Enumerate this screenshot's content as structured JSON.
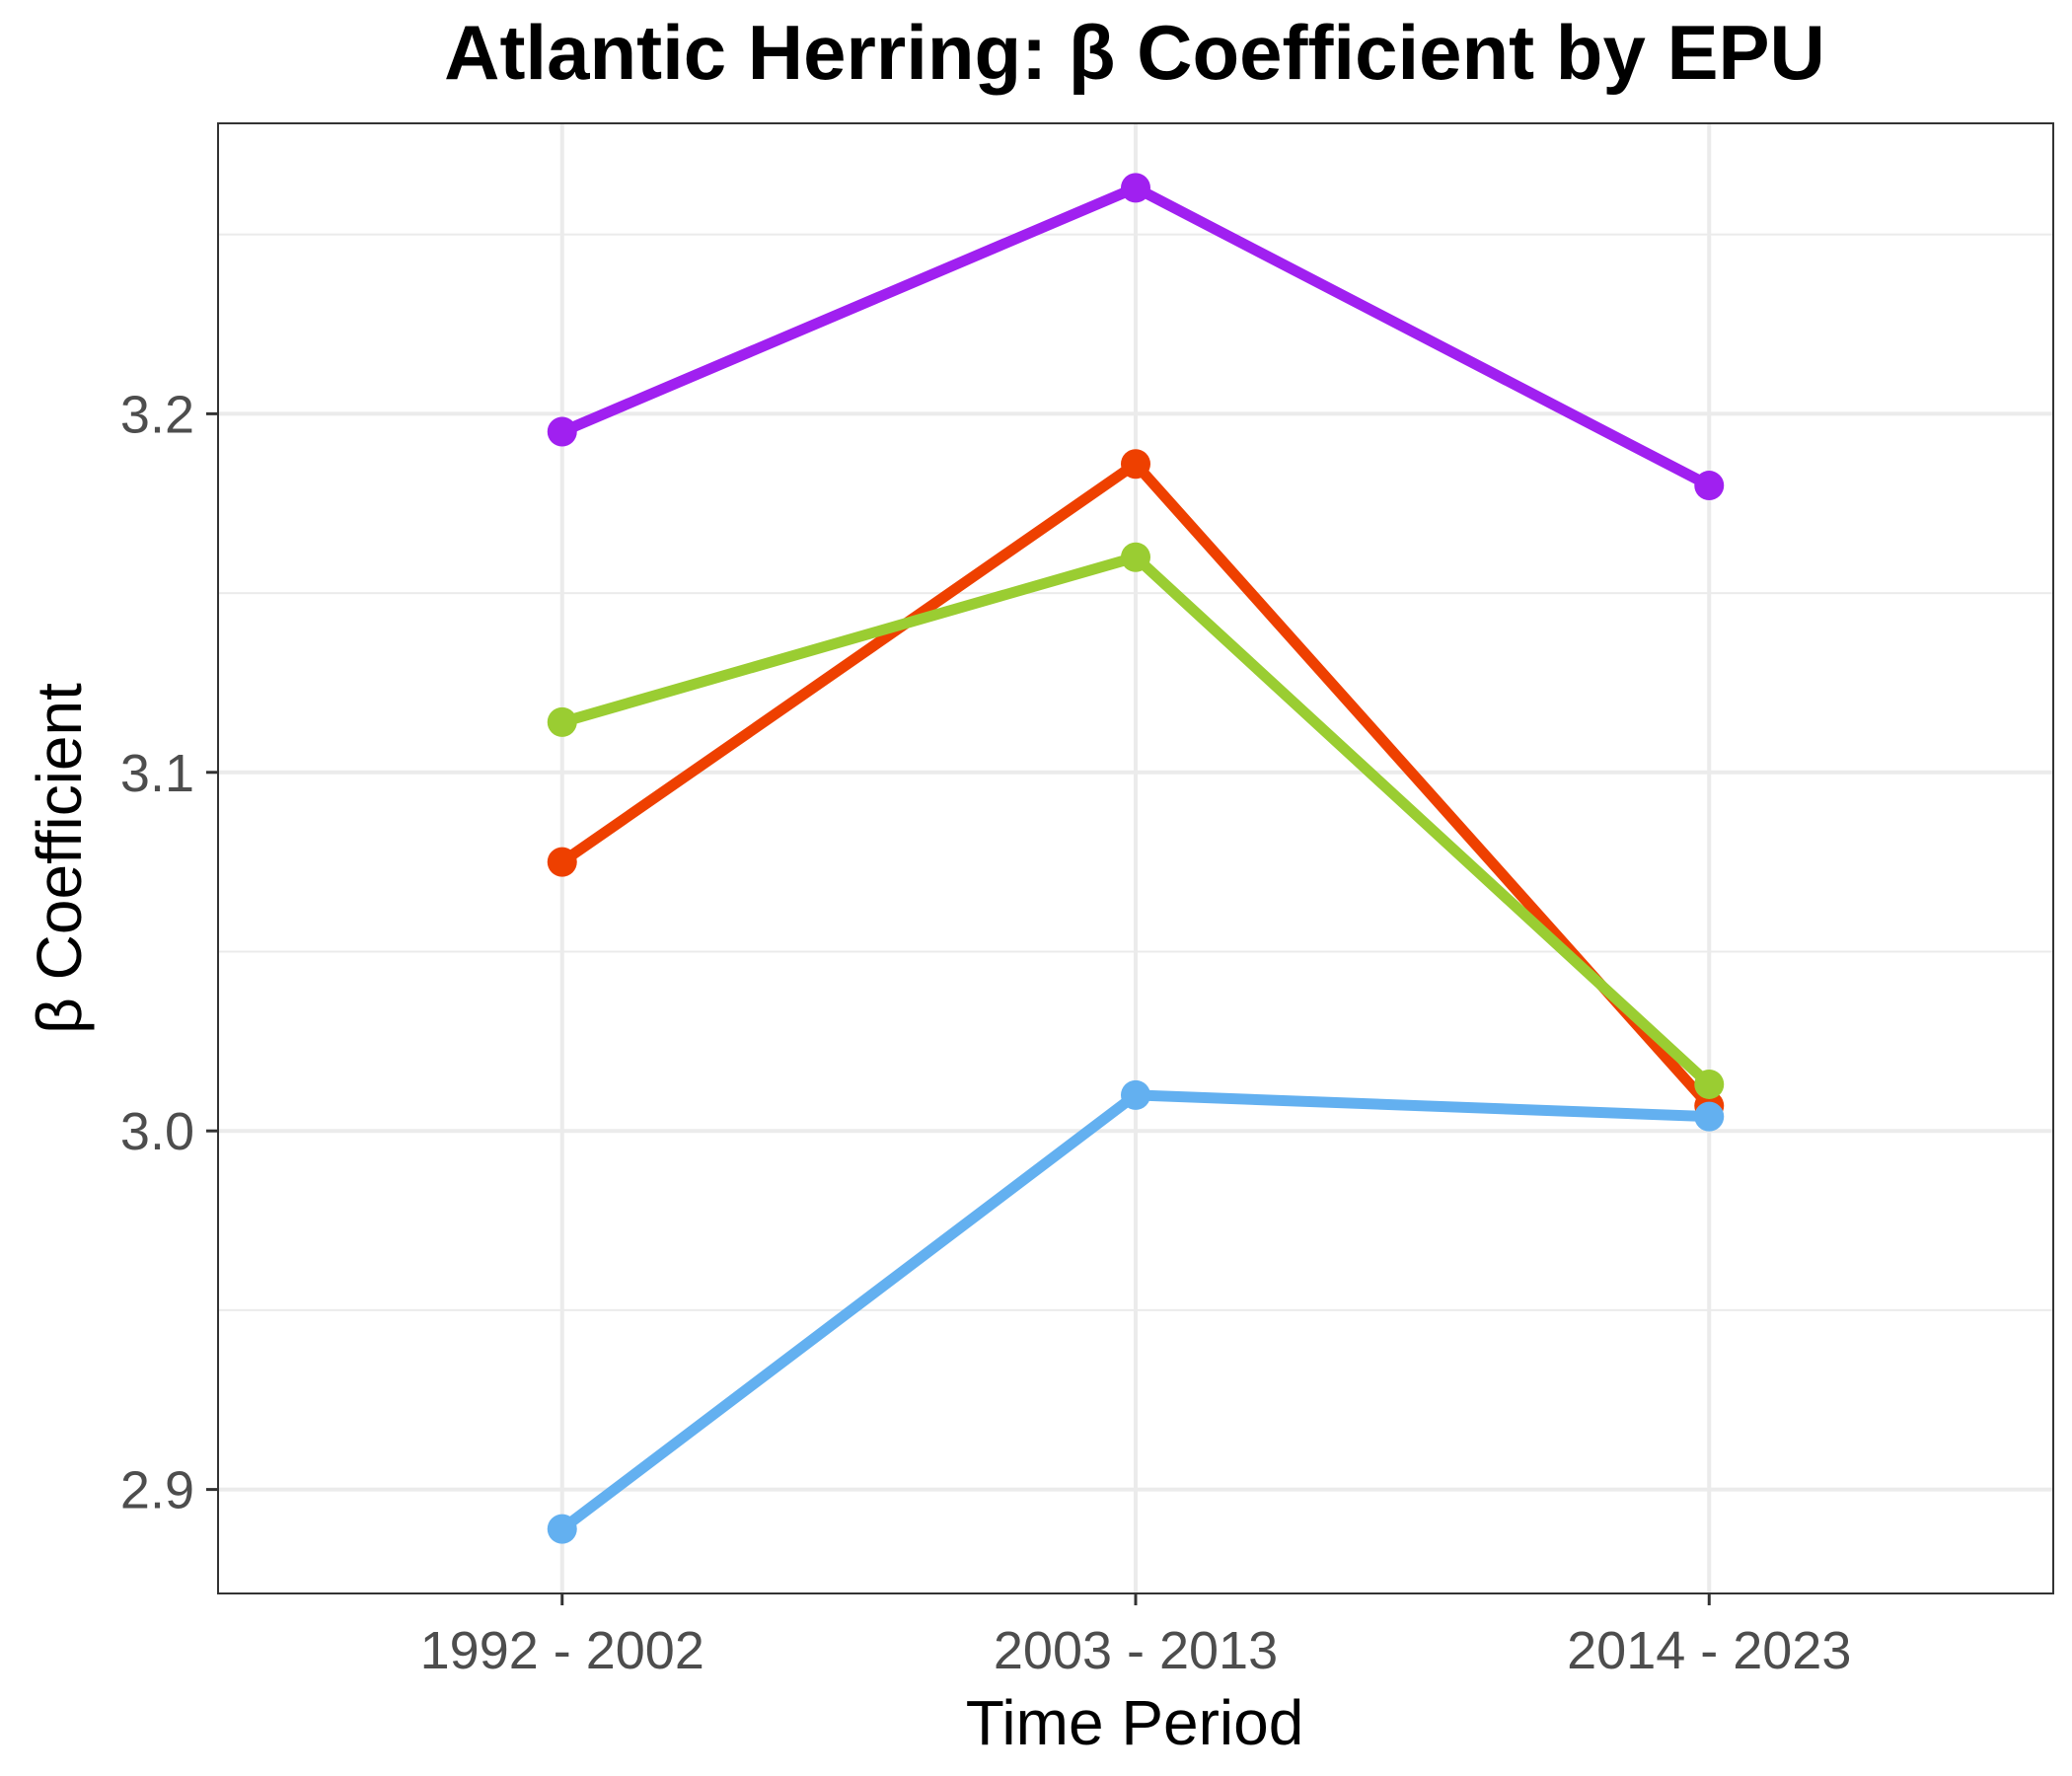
{
  "chart_data": {
    "type": "line",
    "title": "Atlantic Herring: β Coefficient by EPU",
    "xlabel": "Time Period",
    "ylabel": "β Coefficient",
    "categories": [
      "1992 - 2002",
      "2003 - 2013",
      "2014 - 2023"
    ],
    "ylim": [
      2.871,
      3.281
    ],
    "yticks": [
      2.9,
      3.0,
      3.1,
      3.2
    ],
    "ytick_labels": [
      "2.9",
      "3.0",
      "3.1",
      "3.2"
    ],
    "grid": true,
    "legend": "none",
    "series": [
      {
        "color": "#A020F0",
        "values": [
          3.195,
          3.263,
          3.18
        ]
      },
      {
        "color": "#EE4000",
        "values": [
          3.075,
          3.186,
          3.007
        ]
      },
      {
        "color": "#9ACD32",
        "values": [
          3.114,
          3.16,
          3.013
        ]
      },
      {
        "color": "#63B0F0",
        "values": [
          2.889,
          3.01,
          3.004
        ]
      }
    ]
  }
}
